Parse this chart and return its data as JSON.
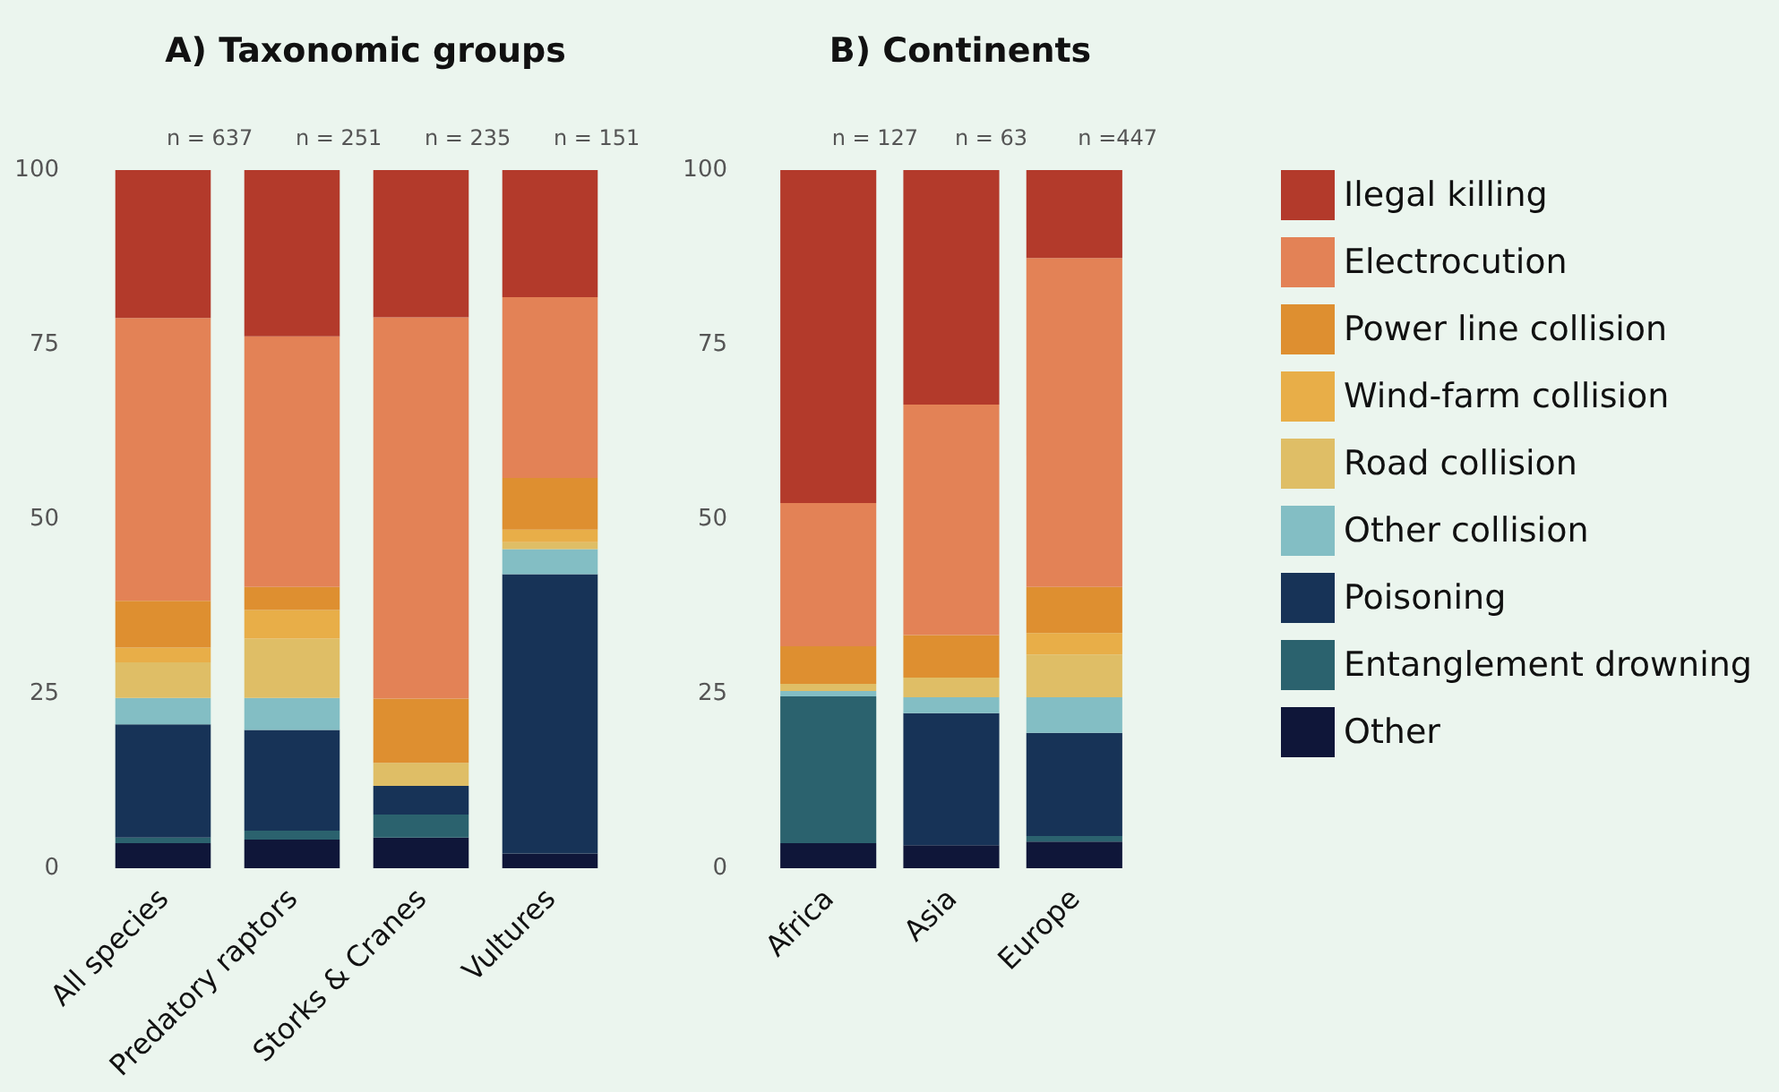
{
  "chart_data": [
    {
      "type": "bar",
      "title": "A) Taxonomic groups",
      "categories": [
        "All species",
        "Predatory raptors",
        "Storks & Cranes",
        "Vultures"
      ],
      "stacked": true,
      "ylim": [
        0,
        100
      ],
      "yticks": [
        0,
        25,
        50,
        75,
        100
      ],
      "grid": false,
      "legend": false,
      "series": [
        {
          "color": "#0f1639",
          "values": [
            3.6,
            4.1,
            4.4,
            2.1
          ]
        },
        {
          "color": "#2b626e",
          "values": [
            0.8,
            1.3,
            3.3,
            0
          ]
        },
        {
          "color": "#173357",
          "values": [
            16.2,
            14.4,
            4.1,
            40.0
          ]
        },
        {
          "color": "#83bec4",
          "values": [
            3.8,
            4.6,
            0,
            3.6
          ]
        },
        {
          "color": "#dfbe66",
          "values": [
            5.1,
            8.5,
            3.3,
            1.0
          ]
        },
        {
          "color": "#e8ae48",
          "values": [
            2.1,
            4.1,
            0,
            1.8
          ]
        },
        {
          "color": "#de8f30",
          "values": [
            6.7,
            3.3,
            9.2,
            7.4
          ]
        },
        {
          "color": "#e38256",
          "values": [
            40.5,
            35.9,
            54.6,
            25.9
          ]
        },
        {
          "color": "#b33a2b",
          "values": [
            21.2,
            23.8,
            21.1,
            18.2
          ]
        }
      ],
      "annotations": [
        {
          "text": "n = 637",
          "x": "All species",
          "y": 100
        },
        {
          "text": "n = 251",
          "x": "Predatory raptors",
          "y": 100
        },
        {
          "text": "n = 235",
          "x": "Storks & Cranes",
          "y": 100
        },
        {
          "text": "n = 151",
          "x": "Vultures",
          "y": 100
        }
      ]
    },
    {
      "type": "bar",
      "title": "B) Continents",
      "categories": [
        "Africa",
        "Asia",
        "Europe"
      ],
      "stacked": true,
      "ylim": [
        0,
        100
      ],
      "yticks": [
        0,
        25,
        50,
        75,
        100
      ],
      "grid": false,
      "legend": "right",
      "series": [
        {
          "name": "Other",
          "color": "#0f1639",
          "values": [
            3.6,
            3.3,
            3.8
          ]
        },
        {
          "name": "Entanglement drowning",
          "color": "#2b626e",
          "values": [
            21.0,
            0,
            0.8
          ]
        },
        {
          "name": "Poisoning",
          "color": "#173357",
          "values": [
            0,
            18.9,
            14.8
          ]
        },
        {
          "name": "Other collision",
          "color": "#83bec4",
          "values": [
            0.8,
            2.3,
            5.1
          ]
        },
        {
          "name": "Road collision",
          "color": "#dfbe66",
          "values": [
            1.0,
            2.8,
            6.1
          ]
        },
        {
          "name": "Wind-farm collision",
          "color": "#e8ae48",
          "values": [
            0,
            0,
            3.1
          ]
        },
        {
          "name": "Power line collision",
          "color": "#de8f30",
          "values": [
            5.4,
            6.1,
            6.6
          ]
        },
        {
          "name": "Electrocution",
          "color": "#e38256",
          "values": [
            20.5,
            33.0,
            47.1
          ]
        },
        {
          "name": "Ilegal killing",
          "color": "#b33a2b",
          "values": [
            47.7,
            33.6,
            12.6
          ]
        }
      ],
      "annotations": [
        {
          "text": "n = 127",
          "x": "Africa",
          "y": 100
        },
        {
          "text": "n = 63",
          "x": "Asia",
          "y": 100
        },
        {
          "text": "n =447",
          "x": "Europe",
          "y": 100
        }
      ]
    }
  ]
}
